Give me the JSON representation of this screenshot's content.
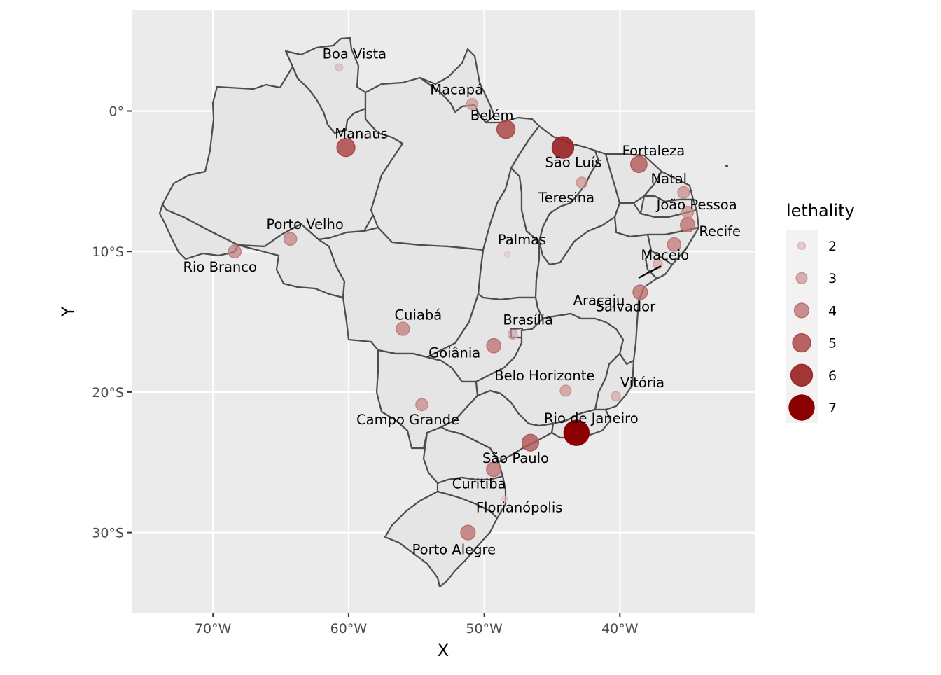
{
  "axes": {
    "x_title": "X",
    "y_title": "Y",
    "x_ticks": [
      {
        "value": -70,
        "label": "70°W"
      },
      {
        "value": -60,
        "label": "60°W"
      },
      {
        "value": -50,
        "label": "50°W"
      },
      {
        "value": -40,
        "label": "40°W"
      }
    ],
    "y_ticks": [
      {
        "value": 0,
        "label": "0°"
      },
      {
        "value": -10,
        "label": "10°S"
      },
      {
        "value": -20,
        "label": "20°S"
      },
      {
        "value": -30,
        "label": "30°S"
      }
    ],
    "xlim": [
      -76,
      -30
    ],
    "ylim": [
      -35.7,
      7.2
    ]
  },
  "legend": {
    "title": "lethality",
    "items": [
      {
        "value": 2,
        "label": "2"
      },
      {
        "value": 3,
        "label": "3"
      },
      {
        "value": 4,
        "label": "4"
      },
      {
        "value": 5,
        "label": "5"
      },
      {
        "value": 6,
        "label": "6"
      },
      {
        "value": 7,
        "label": "7"
      }
    ]
  },
  "colors": {
    "low": "#e2c4c4",
    "high": "#8b0000",
    "panel": "#ebebeb",
    "land": "#e5e5e5",
    "border": "#4d4d4d",
    "grid": "#ffffff"
  },
  "chart_data": {
    "type": "scatter",
    "subtype": "bubble map",
    "x_unit": "longitude",
    "y_unit": "latitude",
    "size_and_color_variable": "lethality",
    "points": [
      {
        "city": "Boa Vista",
        "lon": -60.7,
        "lat": 3.1,
        "lethality": 2.0
      },
      {
        "city": "Macapá",
        "lon": -50.9,
        "lat": 0.5,
        "lethality": 3.0
      },
      {
        "city": "Belém",
        "lon": -48.4,
        "lat": -1.3,
        "lethality": 5.0
      },
      {
        "city": "Manaus",
        "lon": -60.2,
        "lat": -2.6,
        "lethality": 5.0
      },
      {
        "city": "São Luís",
        "lon": -44.2,
        "lat": -2.6,
        "lethality": 6.0
      },
      {
        "city": "Fortaleza",
        "lon": -38.6,
        "lat": -3.8,
        "lethality": 4.5
      },
      {
        "city": "Teresina",
        "lon": -42.8,
        "lat": -5.1,
        "lethality": 3.0
      },
      {
        "city": "Natal",
        "lon": -35.3,
        "lat": -5.8,
        "lethality": 3.2
      },
      {
        "city": "João Pessoa",
        "lon": -35.0,
        "lat": -7.2,
        "lethality": 3.2
      },
      {
        "city": "Recife",
        "lon": -35.0,
        "lat": -8.1,
        "lethality": 4.0
      },
      {
        "city": "Maceió",
        "lon": -36.0,
        "lat": -9.5,
        "lethality": 3.7
      },
      {
        "city": "Aracaju",
        "lon": -37.2,
        "lat": -10.9,
        "lethality": 2.5
      },
      {
        "city": "Salvador",
        "lon": -38.5,
        "lat": -12.9,
        "lethality": 4.0
      },
      {
        "city": "Palmas",
        "lon": -48.3,
        "lat": -10.2,
        "lethality": 1.5
      },
      {
        "city": "Porto Velho",
        "lon": -64.3,
        "lat": -9.1,
        "lethality": 3.5
      },
      {
        "city": "Rio Branco",
        "lon": -68.4,
        "lat": -10.0,
        "lethality": 3.5
      },
      {
        "city": "Cuiabá",
        "lon": -56.0,
        "lat": -15.5,
        "lethality": 3.6
      },
      {
        "city": "Brasília",
        "lon": -47.9,
        "lat": -15.9,
        "lethality": 2.5
      },
      {
        "city": "Goiânia",
        "lon": -49.3,
        "lat": -16.7,
        "lethality": 3.9
      },
      {
        "city": "Belo Horizonte",
        "lon": -44.0,
        "lat": -19.9,
        "lethality": 3.0
      },
      {
        "city": "Vitória",
        "lon": -40.3,
        "lat": -20.3,
        "lethality": 2.5
      },
      {
        "city": "Campo Grande",
        "lon": -54.6,
        "lat": -20.9,
        "lethality": 3.3
      },
      {
        "city": "Rio de Janeiro",
        "lon": -43.2,
        "lat": -22.9,
        "lethality": 7.0
      },
      {
        "city": "São Paulo",
        "lon": -46.6,
        "lat": -23.6,
        "lethality": 4.6
      },
      {
        "city": "Curitiba",
        "lon": -49.3,
        "lat": -25.5,
        "lethality": 4.0
      },
      {
        "city": "Florianópolis",
        "lon": -48.5,
        "lat": -27.6,
        "lethality": 1.5
      },
      {
        "city": "Porto Alegre",
        "lon": -51.2,
        "lat": -30.0,
        "lethality": 4.0
      }
    ]
  }
}
